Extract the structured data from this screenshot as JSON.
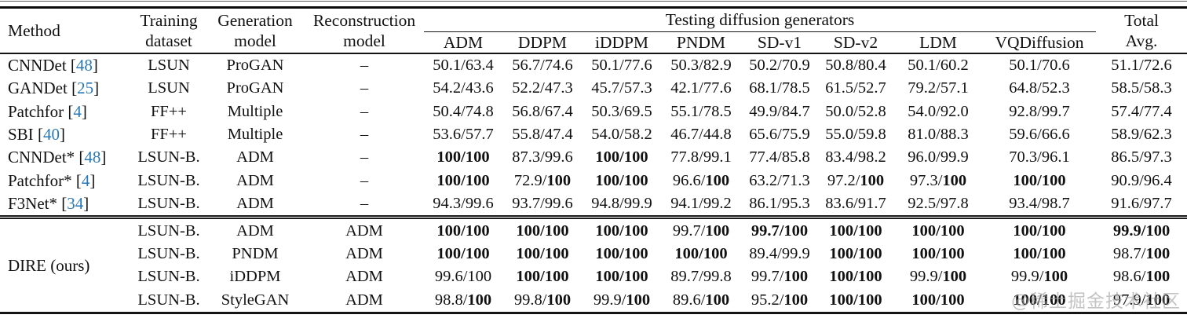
{
  "colors": {
    "citation": "#2878b5",
    "text": "#111111",
    "rule": "#141414",
    "watermark": "#a0a0a0"
  },
  "watermark": "@稀土掘金技术社区",
  "table": {
    "header": {
      "method": "Method",
      "training": [
        "Training",
        "dataset"
      ],
      "generation": [
        "Generation",
        "model"
      ],
      "reconstruction": [
        "Reconstruction",
        "model"
      ],
      "testing_group": "Testing diffusion generators",
      "generators": [
        "ADM",
        "DDPM",
        "iDDPM",
        "PNDM",
        "SD-v1",
        "SD-v2",
        "LDM",
        "VQDiffusion"
      ],
      "total": [
        "Total",
        "Avg."
      ]
    },
    "dire_group": {
      "label": "DIRE (ours)",
      "span": 4
    },
    "rows": [
      {
        "method": "CNNDet",
        "cite": "48",
        "training": "LSUN",
        "generation": "ProGAN",
        "reconstruction": "–",
        "cells": [
          [
            "50.1",
            "63.4",
            0,
            0
          ],
          [
            "56.7",
            "74.6",
            0,
            0
          ],
          [
            "50.1",
            "77.6",
            0,
            0
          ],
          [
            "50.3",
            "82.9",
            0,
            0
          ],
          [
            "50.2",
            "70.9",
            0,
            0
          ],
          [
            "50.8",
            "80.4",
            0,
            0
          ],
          [
            "50.1",
            "60.2",
            0,
            0
          ],
          [
            "50.1",
            "70.6",
            0,
            0
          ],
          [
            "51.1",
            "72.6",
            0,
            0
          ]
        ]
      },
      {
        "method": "GANDet",
        "cite": "25",
        "training": "LSUN",
        "generation": "ProGAN",
        "reconstruction": "–",
        "cells": [
          [
            "54.2",
            "43.6",
            0,
            0
          ],
          [
            "52.2",
            "47.3",
            0,
            0
          ],
          [
            "45.7",
            "57.3",
            0,
            0
          ],
          [
            "42.1",
            "77.6",
            0,
            0
          ],
          [
            "68.1",
            "78.5",
            0,
            0
          ],
          [
            "61.5",
            "52.7",
            0,
            0
          ],
          [
            "79.2",
            "57.1",
            0,
            0
          ],
          [
            "64.8",
            "52.3",
            0,
            0
          ],
          [
            "58.5",
            "58.3",
            0,
            0
          ]
        ]
      },
      {
        "method": "Patchfor",
        "cite": "4",
        "training": "FF++",
        "generation": "Multiple",
        "reconstruction": "–",
        "cells": [
          [
            "50.4",
            "74.8",
            0,
            0
          ],
          [
            "56.8",
            "67.4",
            0,
            0
          ],
          [
            "50.3",
            "69.5",
            0,
            0
          ],
          [
            "55.1",
            "78.5",
            0,
            0
          ],
          [
            "49.9",
            "84.7",
            0,
            0
          ],
          [
            "50.0",
            "52.8",
            0,
            0
          ],
          [
            "54.0",
            "92.0",
            0,
            0
          ],
          [
            "92.8",
            "99.7",
            0,
            0
          ],
          [
            "57.4",
            "77.4",
            0,
            0
          ]
        ]
      },
      {
        "method": "SBI",
        "cite": "40",
        "training": "FF++",
        "generation": "Multiple",
        "reconstruction": "–",
        "cells": [
          [
            "53.6",
            "57.7",
            0,
            0
          ],
          [
            "55.8",
            "47.4",
            0,
            0
          ],
          [
            "54.0",
            "58.2",
            0,
            0
          ],
          [
            "46.7",
            "44.8",
            0,
            0
          ],
          [
            "65.6",
            "75.9",
            0,
            0
          ],
          [
            "55.0",
            "59.8",
            0,
            0
          ],
          [
            "81.0",
            "88.3",
            0,
            0
          ],
          [
            "59.6",
            "66.6",
            0,
            0
          ],
          [
            "58.9",
            "62.3",
            0,
            0
          ]
        ]
      },
      {
        "method": "CNNDet*",
        "cite": "48",
        "training": "LSUN-B.",
        "generation": "ADM",
        "reconstruction": "–",
        "cells": [
          [
            "100",
            "100",
            1,
            1
          ],
          [
            "87.3",
            "99.6",
            0,
            0
          ],
          [
            "100",
            "100",
            1,
            1
          ],
          [
            "77.8",
            "99.1",
            0,
            0
          ],
          [
            "77.4",
            "85.8",
            0,
            0
          ],
          [
            "83.4",
            "98.2",
            0,
            0
          ],
          [
            "96.0",
            "99.9",
            0,
            0
          ],
          [
            "70.3",
            "96.1",
            0,
            0
          ],
          [
            "86.5",
            "97.3",
            0,
            0
          ]
        ]
      },
      {
        "method": "Patchfor*",
        "cite": "4",
        "training": "LSUN-B.",
        "generation": "ADM",
        "reconstruction": "–",
        "cells": [
          [
            "100",
            "100",
            1,
            1
          ],
          [
            "72.9",
            "100",
            0,
            1
          ],
          [
            "100",
            "100",
            1,
            1
          ],
          [
            "96.6",
            "100",
            0,
            1
          ],
          [
            "63.2",
            "71.3",
            0,
            0
          ],
          [
            "97.2",
            "100",
            0,
            1
          ],
          [
            "97.3",
            "100",
            0,
            1
          ],
          [
            "100",
            "100",
            1,
            1
          ],
          [
            "90.9",
            "96.4",
            0,
            0
          ]
        ]
      },
      {
        "method": "F3Net*",
        "cite": "34",
        "training": "LSUN-B.",
        "generation": "ADM",
        "reconstruction": "–",
        "divider_after": true,
        "cells": [
          [
            "94.3",
            "99.6",
            0,
            0
          ],
          [
            "93.7",
            "99.6",
            0,
            0
          ],
          [
            "94.8",
            "99.9",
            0,
            0
          ],
          [
            "94.1",
            "99.2",
            0,
            0
          ],
          [
            "86.1",
            "95.3",
            0,
            0
          ],
          [
            "83.6",
            "91.7",
            0,
            0
          ],
          [
            "92.5",
            "97.8",
            0,
            0
          ],
          [
            "93.4",
            "98.7",
            0,
            0
          ],
          [
            "91.6",
            "97.7",
            0,
            0
          ]
        ]
      },
      {
        "group_start": true,
        "training": "LSUN-B.",
        "generation": "ADM",
        "reconstruction": "ADM",
        "cells": [
          [
            "100",
            "100",
            1,
            1
          ],
          [
            "100",
            "100",
            1,
            1
          ],
          [
            "100",
            "100",
            1,
            1
          ],
          [
            "99.7",
            "100",
            0,
            1
          ],
          [
            "99.7",
            "100",
            1,
            1
          ],
          [
            "100",
            "100",
            1,
            1
          ],
          [
            "100",
            "100",
            1,
            1
          ],
          [
            "100",
            "100",
            1,
            1
          ],
          [
            "99.9",
            "100",
            1,
            1
          ]
        ]
      },
      {
        "in_group": true,
        "training": "LSUN-B.",
        "generation": "PNDM",
        "reconstruction": "ADM",
        "cells": [
          [
            "100",
            "100",
            1,
            1
          ],
          [
            "100",
            "100",
            1,
            1
          ],
          [
            "100",
            "100",
            1,
            1
          ],
          [
            "100",
            "100",
            1,
            1
          ],
          [
            "89.4",
            "99.9",
            0,
            0
          ],
          [
            "100",
            "100",
            1,
            1
          ],
          [
            "100",
            "100",
            1,
            1
          ],
          [
            "100",
            "100",
            1,
            1
          ],
          [
            "98.7",
            "100",
            0,
            1
          ]
        ]
      },
      {
        "in_group": true,
        "training": "LSUN-B.",
        "generation": "iDDPM",
        "reconstruction": "ADM",
        "cells": [
          [
            "99.6",
            "100",
            0,
            0
          ],
          [
            "100",
            "100",
            1,
            1
          ],
          [
            "100",
            "100",
            1,
            1
          ],
          [
            "89.7",
            "99.8",
            0,
            0
          ],
          [
            "99.7",
            "100",
            0,
            1
          ],
          [
            "100",
            "100",
            1,
            1
          ],
          [
            "99.9",
            "100",
            0,
            1
          ],
          [
            "99.9",
            "100",
            0,
            1
          ],
          [
            "98.6",
            "100",
            0,
            1
          ]
        ]
      },
      {
        "in_group": true,
        "training": "LSUN-B.",
        "generation": "StyleGAN",
        "reconstruction": "ADM",
        "cells": [
          [
            "98.8",
            "100",
            0,
            1
          ],
          [
            "99.8",
            "100",
            0,
            1
          ],
          [
            "99.9",
            "100",
            0,
            1
          ],
          [
            "89.6",
            "100",
            0,
            1
          ],
          [
            "95.2",
            "100",
            0,
            1
          ],
          [
            "100",
            "100",
            1,
            1
          ],
          [
            "100",
            "100",
            1,
            1
          ],
          [
            "100",
            "100",
            1,
            1
          ],
          [
            "97.9",
            "100",
            0,
            1
          ]
        ]
      }
    ]
  }
}
